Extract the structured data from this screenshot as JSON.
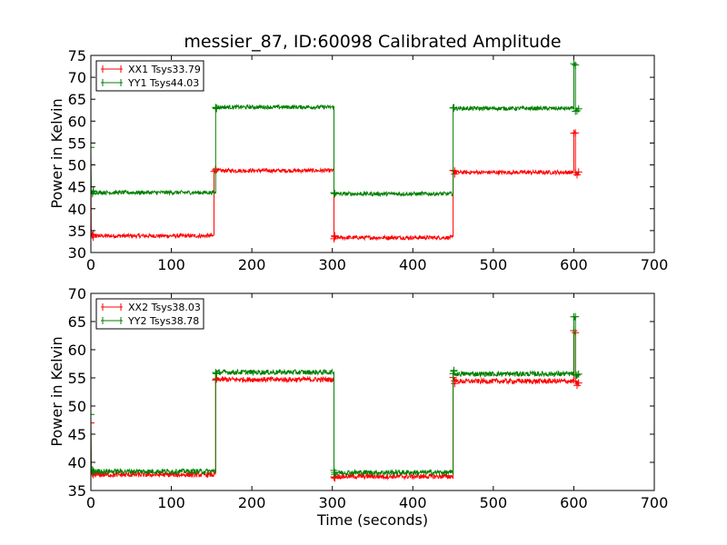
{
  "chart_data": [
    {
      "type": "line",
      "title": "messier_87, ID:60098 Calibrated Amplitude",
      "xlabel": "",
      "ylabel": "Power in Kelvin",
      "xlim": [
        0,
        700
      ],
      "ylim": [
        30,
        75
      ],
      "xticks": [
        "0",
        "100",
        "200",
        "300",
        "400",
        "500",
        "600",
        "700"
      ],
      "yticks": [
        "30",
        "35",
        "40",
        "45",
        "50",
        "55",
        "60",
        "65",
        "70",
        "75"
      ],
      "grid": false,
      "legend_position": "top-left",
      "series": [
        {
          "name": "XX1 Tsys33.79",
          "color": "#ff0000",
          "segments": [
            {
              "x0": 0,
              "x1": 3,
              "start": 50.0,
              "level": 33.8
            },
            {
              "x0": 3,
              "x1": 153,
              "level": 33.8
            },
            {
              "x0": 153,
              "x1": 155,
              "level": 48.7
            },
            {
              "x0": 155,
              "x1": 302,
              "level": 48.7
            },
            {
              "x0": 302,
              "x1": 303,
              "level": 33.4
            },
            {
              "x0": 303,
              "x1": 450,
              "level": 33.4
            },
            {
              "x0": 450,
              "x1": 452,
              "level": 48.5
            },
            {
              "x0": 452,
              "x1": 600,
              "level": 48.3
            },
            {
              "x0": 600,
              "x1": 602,
              "level": 57.5
            },
            {
              "x0": 602,
              "x1": 606,
              "level": 48.0
            }
          ]
        },
        {
          "name": "YY1 Tsys44.03",
          "color": "#008000",
          "segments": [
            {
              "x0": 0,
              "x1": 3,
              "start": 54.0,
              "level": 43.7
            },
            {
              "x0": 3,
              "x1": 155,
              "level": 43.7
            },
            {
              "x0": 155,
              "x1": 156,
              "level": 63.3
            },
            {
              "x0": 156,
              "x1": 302,
              "level": 63.2
            },
            {
              "x0": 302,
              "x1": 303,
              "level": 43.4
            },
            {
              "x0": 303,
              "x1": 450,
              "level": 43.4
            },
            {
              "x0": 450,
              "x1": 451,
              "level": 63.0
            },
            {
              "x0": 451,
              "x1": 600,
              "level": 62.9
            },
            {
              "x0": 600,
              "x1": 602,
              "level": 73.0
            },
            {
              "x0": 602,
              "x1": 606,
              "level": 62.5
            }
          ]
        }
      ]
    },
    {
      "type": "line",
      "title": "",
      "xlabel": "Time (seconds)",
      "ylabel": "Power in Kelvin",
      "xlim": [
        0,
        700
      ],
      "ylim": [
        35,
        70
      ],
      "xticks": [
        "0",
        "100",
        "200",
        "300",
        "400",
        "500",
        "600",
        "700"
      ],
      "yticks": [
        "35",
        "40",
        "45",
        "50",
        "55",
        "60",
        "65",
        "70"
      ],
      "grid": false,
      "legend_position": "top-left",
      "series": [
        {
          "name": "XX2 Tsys38.03",
          "color": "#ff0000",
          "segments": [
            {
              "x0": 0,
              "x1": 3,
              "start": 47.0,
              "level": 37.8
            },
            {
              "x0": 3,
              "x1": 155,
              "level": 37.8
            },
            {
              "x0": 155,
              "x1": 156,
              "level": 54.8
            },
            {
              "x0": 156,
              "x1": 302,
              "level": 54.7
            },
            {
              "x0": 302,
              "x1": 303,
              "level": 37.6
            },
            {
              "x0": 303,
              "x1": 450,
              "level": 37.5
            },
            {
              "x0": 450,
              "x1": 452,
              "level": 54.8
            },
            {
              "x0": 452,
              "x1": 600,
              "level": 54.4
            },
            {
              "x0": 600,
              "x1": 602,
              "level": 63.0
            },
            {
              "x0": 602,
              "x1": 606,
              "level": 54.0
            }
          ]
        },
        {
          "name": "YY2 Tsys38.78",
          "color": "#008000",
          "segments": [
            {
              "x0": 0,
              "x1": 3,
              "start": 48.5,
              "level": 38.4
            },
            {
              "x0": 3,
              "x1": 155,
              "level": 38.4
            },
            {
              "x0": 155,
              "x1": 156,
              "level": 56.1
            },
            {
              "x0": 156,
              "x1": 302,
              "level": 56.0
            },
            {
              "x0": 302,
              "x1": 303,
              "level": 38.3
            },
            {
              "x0": 303,
              "x1": 450,
              "level": 38.2
            },
            {
              "x0": 450,
              "x1": 451,
              "level": 56.0
            },
            {
              "x0": 451,
              "x1": 600,
              "level": 55.7
            },
            {
              "x0": 600,
              "x1": 602,
              "level": 65.5
            },
            {
              "x0": 602,
              "x1": 606,
              "level": 55.3
            }
          ]
        }
      ]
    }
  ]
}
